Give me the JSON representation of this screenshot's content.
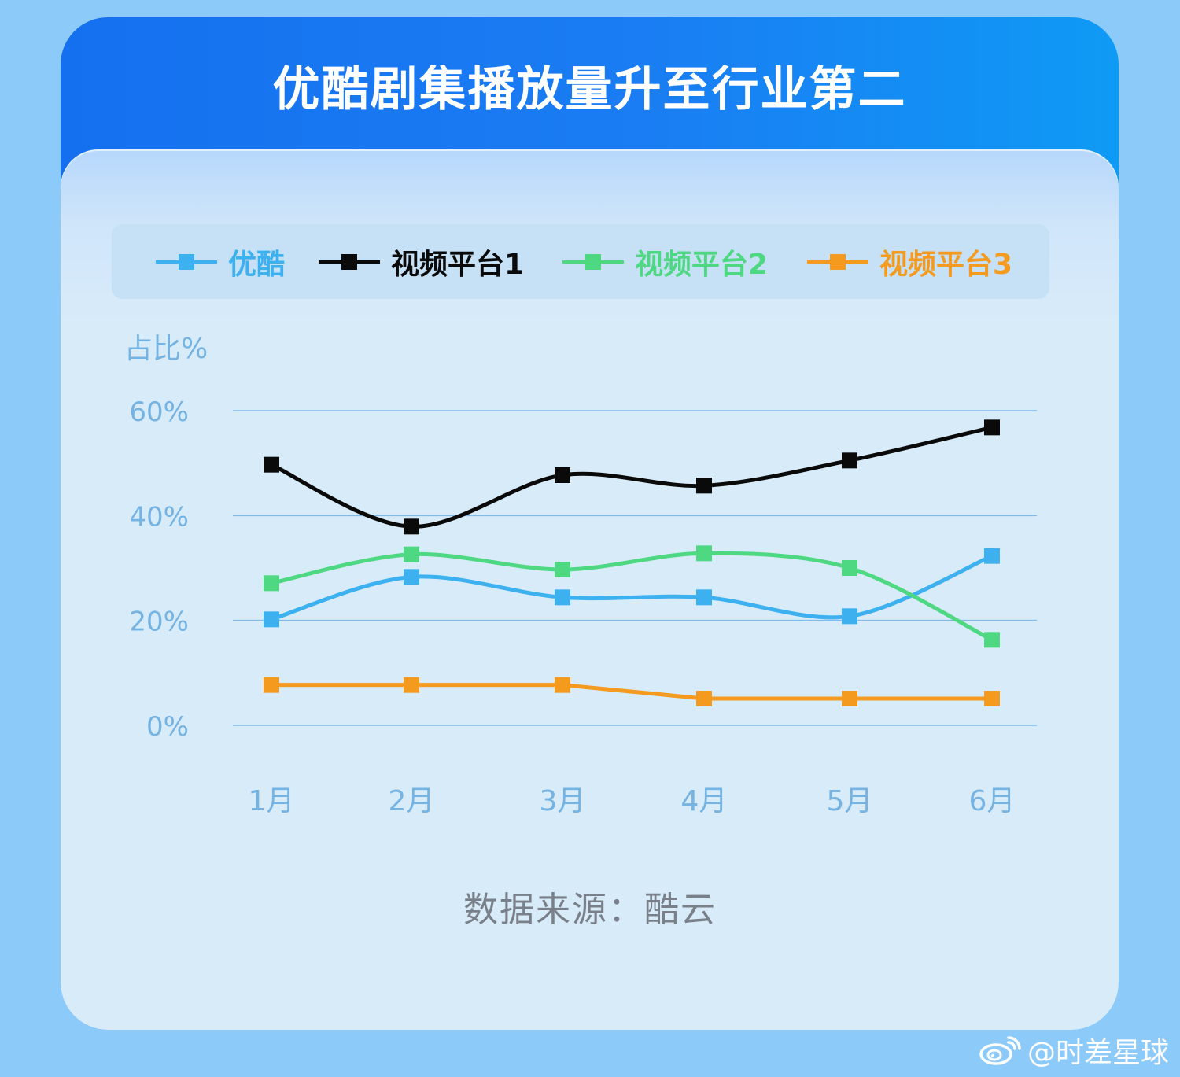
{
  "title": "优酷剧集播放量升至行业第二",
  "chart_data": {
    "type": "line",
    "title": "优酷剧集播放量升至行业第二",
    "ylabel": "占比%",
    "xlabel": "",
    "categories": [
      "1月",
      "2月",
      "3月",
      "4月",
      "5月",
      "6月"
    ],
    "ylim": [
      0,
      60
    ],
    "yticks": [
      0,
      20,
      40,
      60
    ],
    "ytick_labels": [
      "0%",
      "20%",
      "40%",
      "60%"
    ],
    "grid": true,
    "legend_position": "top",
    "series": [
      {
        "name": "优酷",
        "color": "#3db1f0",
        "values": [
          20.2,
          28.3,
          24.4,
          24.4,
          20.8,
          32.3
        ]
      },
      {
        "name": "视频平台1",
        "color": "#0a0a0a",
        "values": [
          49.7,
          37.9,
          47.7,
          45.7,
          50.5,
          56.8
        ]
      },
      {
        "name": "视频平台2",
        "color": "#4ed882",
        "values": [
          27.1,
          32.6,
          29.7,
          32.8,
          30.0,
          16.3
        ]
      },
      {
        "name": "视频平台3",
        "color": "#f39a1f",
        "values": [
          7.7,
          7.7,
          7.7,
          5.1,
          5.1,
          5.1
        ]
      }
    ],
    "axis_color": "#6aaee6",
    "tick_label_color": "#75b3e3"
  },
  "source_text": "数据来源：酷云",
  "watermark": "@时差星球"
}
